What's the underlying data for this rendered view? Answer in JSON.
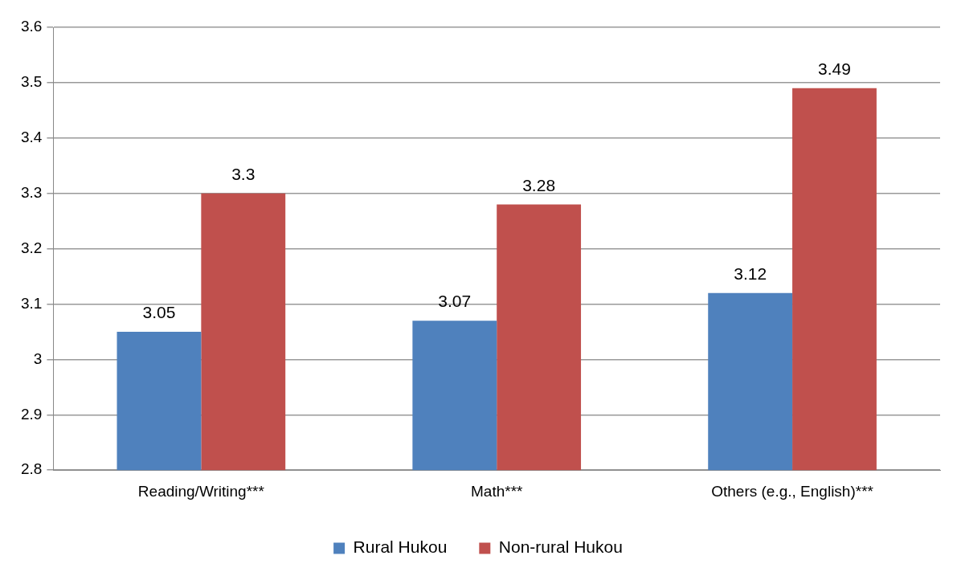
{
  "chart_data": {
    "type": "bar",
    "categories": [
      "Reading/Writing***",
      "Math***",
      "Others (e.g., English)***"
    ],
    "series": [
      {
        "name": "Rural Hukou",
        "color": "#4f81bd",
        "values": [
          3.05,
          3.07,
          3.12
        ]
      },
      {
        "name": "Non-rural Hukou",
        "color": "#c0504d",
        "values": [
          3.3,
          3.28,
          3.49
        ]
      }
    ],
    "ylim": [
      2.8,
      3.6
    ],
    "yticks": [
      2.8,
      2.9,
      3,
      3.1,
      3.2,
      3.3,
      3.4,
      3.5,
      3.6
    ],
    "grid": "y",
    "legend": "bottom",
    "data_labels": true
  }
}
